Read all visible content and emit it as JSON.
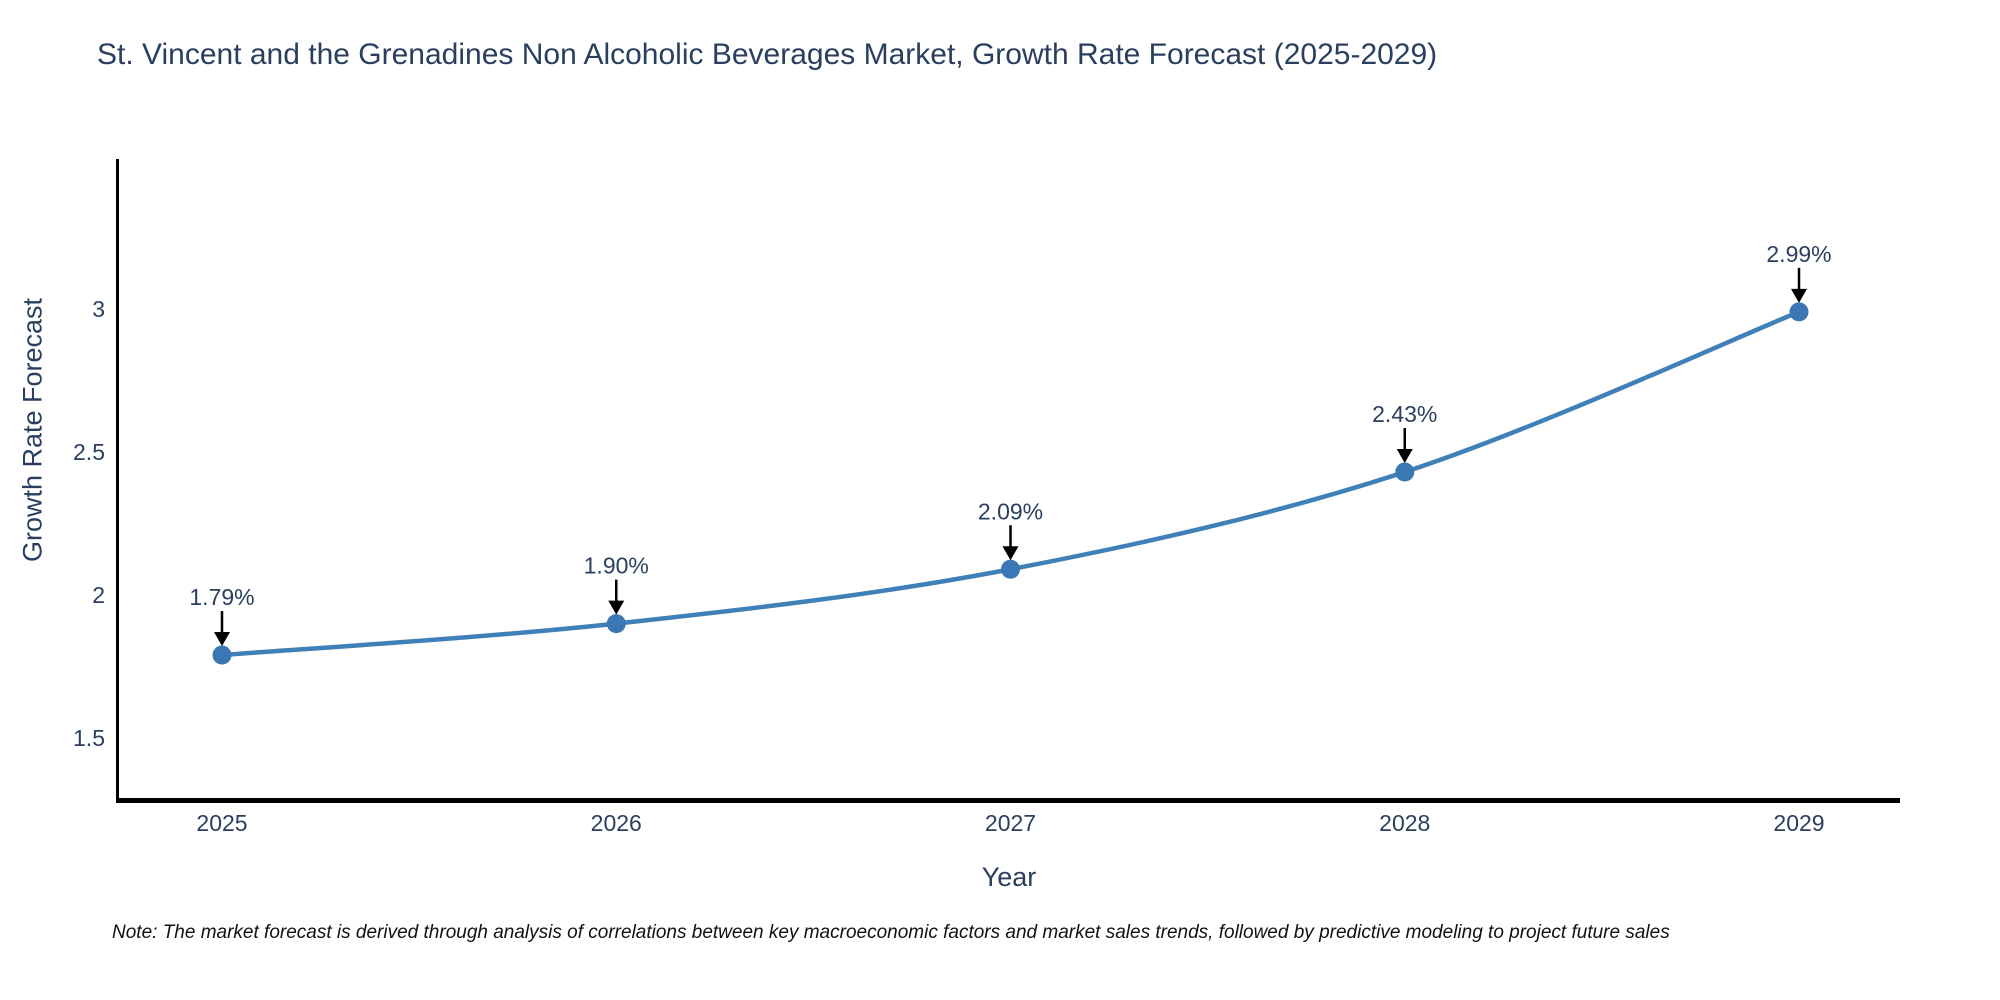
{
  "title": "St. Vincent and the Grenadines Non Alcoholic Beverages Market, Growth Rate Forecast (2025-2029)",
  "note": "Note: The market forecast is derived through analysis of correlations between key macroeconomic factors and market sales trends, followed by predictive modeling to project future sales",
  "chart_data": {
    "type": "line",
    "title": "St. Vincent and the Grenadines Non Alcoholic Beverages Market, Growth Rate Forecast (2025-2029)",
    "xlabel": "Year",
    "ylabel": "Growth Rate Forecast",
    "x": [
      2025,
      2026,
      2027,
      2028,
      2029
    ],
    "values": [
      1.79,
      1.9,
      2.09,
      2.43,
      2.99
    ],
    "point_labels": [
      "1.79%",
      "1.90%",
      "2.09%",
      "2.43%",
      "2.99%"
    ],
    "xticks": [
      "2025",
      "2026",
      "2027",
      "2028",
      "2029"
    ],
    "yticks": [
      1.5,
      2,
      2.5,
      3
    ],
    "ytick_labels": [
      "1.5",
      "2",
      "2.5",
      "3"
    ],
    "xlim": [
      2024.74,
      2029.26
    ],
    "ylim": [
      1.29,
      3.52
    ],
    "grid": false,
    "legend_position": "none",
    "line_shape": "spline",
    "colors": {
      "line": "#4080b8",
      "marker": "#3a77b4",
      "annotation_text": "#2a3f5f",
      "annotation_arrow": "#000000",
      "axis_text": "#2a3f5f",
      "spine": "#000000",
      "background": "#ffffff"
    }
  }
}
